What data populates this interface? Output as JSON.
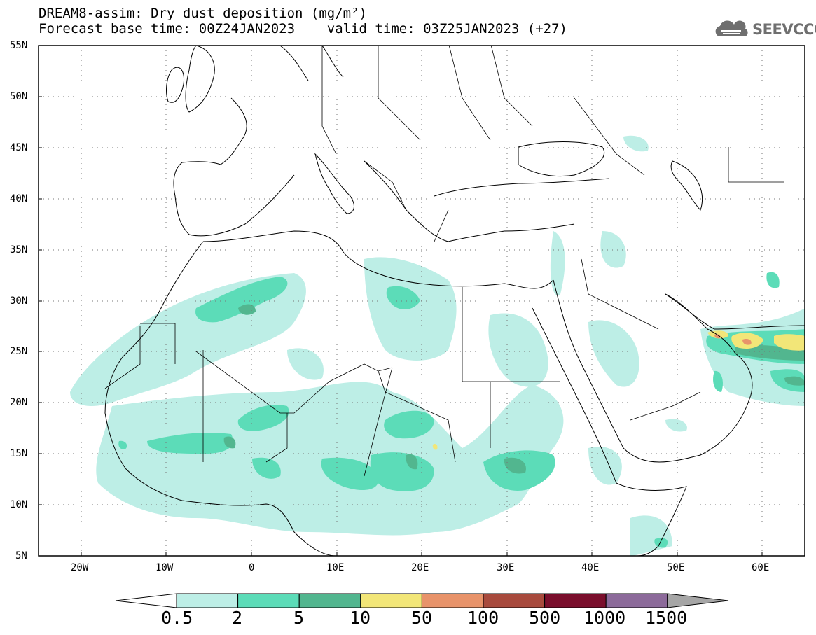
{
  "header": {
    "title_line1": "DREAM8-assim: Dry dust deposition (mg/m²)",
    "title_line2": "Forecast base time: 00Z24JAN2023    valid time: 03Z25JAN2023 (+27)"
  },
  "logo": {
    "text": "SEEVCCC",
    "icon": "cloud-icon",
    "color": "#6f6f6f"
  },
  "map": {
    "projection": "lat-lon",
    "lon_range": [
      -25,
      65
    ],
    "lat_range": [
      5,
      55
    ],
    "lat_labels": [
      "55N",
      "50N",
      "45N",
      "40N",
      "35N",
      "30N",
      "25N",
      "20N",
      "15N",
      "10N",
      "5N"
    ],
    "lon_labels": [
      "20W",
      "10W",
      "0",
      "10E",
      "20E",
      "30E",
      "40E",
      "50E",
      "60E"
    ],
    "gridlines": "dotted"
  },
  "colorbar": {
    "labels": [
      "0.5",
      "2",
      "5",
      "10",
      "50",
      "100",
      "500",
      "1000",
      "1500"
    ],
    "colors": [
      "#bdeee6",
      "#5cdcb8",
      "#52b68f",
      "#f2e678",
      "#e8936a",
      "#a84a3d",
      "#7a0e2c",
      "#8c6a9a",
      "#a6a6a6"
    ],
    "under_color": "#ffffff",
    "over_color": "#a6a6a6"
  }
}
